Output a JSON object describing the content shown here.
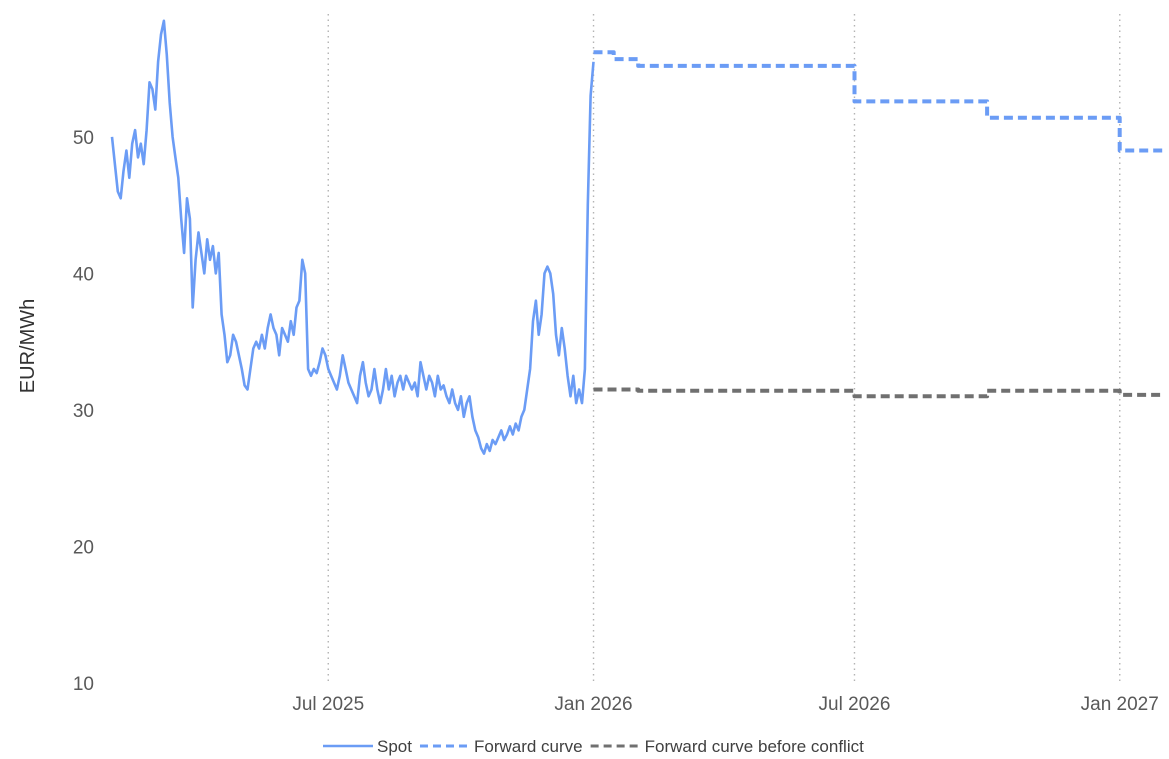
{
  "chart_data": {
    "type": "line",
    "title": "",
    "xlabel": "",
    "ylabel": "EUR/MWh",
    "ylim": [
      10,
      59
    ],
    "xlim": [
      "2025-02-01",
      "2027-01-31"
    ],
    "grid": {
      "vertical": "dotted",
      "horizontal": false
    },
    "legend_position": "bottom-center",
    "y_ticks": [
      {
        "value": 10,
        "label": "10"
      },
      {
        "value": 20,
        "label": "20"
      },
      {
        "value": 30,
        "label": "30"
      },
      {
        "value": 40,
        "label": "40"
      },
      {
        "value": 50,
        "label": "50"
      }
    ],
    "x_ticks": [
      {
        "value": "2025-07-01",
        "label": "Jul 2025"
      },
      {
        "value": "2026-01-01",
        "label": "Jan 2026"
      },
      {
        "value": "2026-07-01",
        "label": "Jul 2026"
      },
      {
        "value": "2027-01-01",
        "label": "Jan 2027"
      }
    ],
    "series": [
      {
        "name": "Spot",
        "color": "#6b9cf5",
        "style": "solid",
        "step": false,
        "points": [
          [
            "2025-02-01",
            50.0
          ],
          [
            "2025-02-03",
            48.0
          ],
          [
            "2025-02-05",
            46.0
          ],
          [
            "2025-02-07",
            45.5
          ],
          [
            "2025-02-09",
            47.5
          ],
          [
            "2025-02-11",
            49.0
          ],
          [
            "2025-02-13",
            47.0
          ],
          [
            "2025-02-15",
            49.5
          ],
          [
            "2025-02-17",
            50.5
          ],
          [
            "2025-02-19",
            48.5
          ],
          [
            "2025-02-21",
            49.5
          ],
          [
            "2025-02-23",
            48.0
          ],
          [
            "2025-02-25",
            50.5
          ],
          [
            "2025-02-27",
            54.0
          ],
          [
            "2025-03-01",
            53.5
          ],
          [
            "2025-03-03",
            52.0
          ],
          [
            "2025-03-05",
            55.5
          ],
          [
            "2025-03-07",
            57.5
          ],
          [
            "2025-03-09",
            58.5
          ],
          [
            "2025-03-11",
            56.0
          ],
          [
            "2025-03-13",
            52.5
          ],
          [
            "2025-03-15",
            50.0
          ],
          [
            "2025-03-17",
            48.5
          ],
          [
            "2025-03-19",
            47.0
          ],
          [
            "2025-03-21",
            44.0
          ],
          [
            "2025-03-23",
            41.5
          ],
          [
            "2025-03-25",
            45.5
          ],
          [
            "2025-03-27",
            44.0
          ],
          [
            "2025-03-29",
            37.5
          ],
          [
            "2025-03-31",
            41.0
          ],
          [
            "2025-04-02",
            43.0
          ],
          [
            "2025-04-04",
            41.5
          ],
          [
            "2025-04-06",
            40.0
          ],
          [
            "2025-04-08",
            42.5
          ],
          [
            "2025-04-10",
            41.0
          ],
          [
            "2025-04-12",
            42.0
          ],
          [
            "2025-04-14",
            40.0
          ],
          [
            "2025-04-16",
            41.5
          ],
          [
            "2025-04-18",
            37.0
          ],
          [
            "2025-04-20",
            35.5
          ],
          [
            "2025-04-22",
            33.5
          ],
          [
            "2025-04-24",
            34.0
          ],
          [
            "2025-04-26",
            35.5
          ],
          [
            "2025-04-28",
            35.0
          ],
          [
            "2025-04-30",
            34.0
          ],
          [
            "2025-05-02",
            33.0
          ],
          [
            "2025-05-04",
            31.8
          ],
          [
            "2025-05-06",
            31.5
          ],
          [
            "2025-05-08",
            33.0
          ],
          [
            "2025-05-10",
            34.5
          ],
          [
            "2025-05-12",
            35.0
          ],
          [
            "2025-05-14",
            34.5
          ],
          [
            "2025-05-16",
            35.5
          ],
          [
            "2025-05-18",
            34.5
          ],
          [
            "2025-05-20",
            36.0
          ],
          [
            "2025-05-22",
            37.0
          ],
          [
            "2025-05-24",
            36.0
          ],
          [
            "2025-05-26",
            35.5
          ],
          [
            "2025-05-28",
            34.0
          ],
          [
            "2025-05-30",
            36.0
          ],
          [
            "2025-06-01",
            35.5
          ],
          [
            "2025-06-03",
            35.0
          ],
          [
            "2025-06-05",
            36.5
          ],
          [
            "2025-06-07",
            35.5
          ],
          [
            "2025-06-09",
            37.5
          ],
          [
            "2025-06-11",
            38.0
          ],
          [
            "2025-06-13",
            41.0
          ],
          [
            "2025-06-15",
            40.0
          ],
          [
            "2025-06-17",
            33.0
          ],
          [
            "2025-06-19",
            32.5
          ],
          [
            "2025-06-21",
            33.0
          ],
          [
            "2025-06-23",
            32.7
          ],
          [
            "2025-06-25",
            33.5
          ],
          [
            "2025-06-27",
            34.5
          ],
          [
            "2025-06-29",
            34.0
          ],
          [
            "2025-07-01",
            33.0
          ],
          [
            "2025-07-03",
            32.5
          ],
          [
            "2025-07-05",
            32.0
          ],
          [
            "2025-07-07",
            31.5
          ],
          [
            "2025-07-09",
            32.5
          ],
          [
            "2025-07-11",
            34.0
          ],
          [
            "2025-07-13",
            33.0
          ],
          [
            "2025-07-15",
            32.0
          ],
          [
            "2025-07-17",
            31.5
          ],
          [
            "2025-07-19",
            31.0
          ],
          [
            "2025-07-21",
            30.5
          ],
          [
            "2025-07-23",
            32.5
          ],
          [
            "2025-07-25",
            33.5
          ],
          [
            "2025-07-27",
            32.0
          ],
          [
            "2025-07-29",
            31.0
          ],
          [
            "2025-07-31",
            31.5
          ],
          [
            "2025-08-02",
            33.0
          ],
          [
            "2025-08-04",
            31.5
          ],
          [
            "2025-08-06",
            30.5
          ],
          [
            "2025-08-08",
            31.5
          ],
          [
            "2025-08-10",
            33.0
          ],
          [
            "2025-08-12",
            31.5
          ],
          [
            "2025-08-14",
            32.5
          ],
          [
            "2025-08-16",
            31.0
          ],
          [
            "2025-08-18",
            32.0
          ],
          [
            "2025-08-20",
            32.5
          ],
          [
            "2025-08-22",
            31.5
          ],
          [
            "2025-08-24",
            32.5
          ],
          [
            "2025-08-26",
            32.0
          ],
          [
            "2025-08-28",
            31.5
          ],
          [
            "2025-08-30",
            32.0
          ],
          [
            "2025-09-01",
            31.0
          ],
          [
            "2025-09-03",
            33.5
          ],
          [
            "2025-09-05",
            32.5
          ],
          [
            "2025-09-07",
            31.5
          ],
          [
            "2025-09-09",
            32.5
          ],
          [
            "2025-09-11",
            32.0
          ],
          [
            "2025-09-13",
            31.0
          ],
          [
            "2025-09-15",
            32.5
          ],
          [
            "2025-09-17",
            31.5
          ],
          [
            "2025-09-19",
            31.8
          ],
          [
            "2025-09-21",
            31.0
          ],
          [
            "2025-09-23",
            30.5
          ],
          [
            "2025-09-25",
            31.5
          ],
          [
            "2025-09-27",
            30.5
          ],
          [
            "2025-09-29",
            30.0
          ],
          [
            "2025-10-01",
            31.0
          ],
          [
            "2025-10-03",
            29.5
          ],
          [
            "2025-10-05",
            30.5
          ],
          [
            "2025-10-07",
            31.0
          ],
          [
            "2025-10-09",
            29.5
          ],
          [
            "2025-10-11",
            28.5
          ],
          [
            "2025-10-13",
            28.0
          ],
          [
            "2025-10-15",
            27.2
          ],
          [
            "2025-10-17",
            26.8
          ],
          [
            "2025-10-19",
            27.5
          ],
          [
            "2025-10-21",
            27.0
          ],
          [
            "2025-10-23",
            27.8
          ],
          [
            "2025-10-25",
            27.5
          ],
          [
            "2025-10-27",
            28.0
          ],
          [
            "2025-10-29",
            28.5
          ],
          [
            "2025-10-31",
            27.8
          ],
          [
            "2025-11-02",
            28.2
          ],
          [
            "2025-11-04",
            28.8
          ],
          [
            "2025-11-06",
            28.2
          ],
          [
            "2025-11-08",
            29.0
          ],
          [
            "2025-11-10",
            28.5
          ],
          [
            "2025-11-12",
            29.5
          ],
          [
            "2025-11-14",
            30.0
          ],
          [
            "2025-11-16",
            31.5
          ],
          [
            "2025-11-18",
            33.0
          ],
          [
            "2025-11-20",
            36.5
          ],
          [
            "2025-11-22",
            38.0
          ],
          [
            "2025-11-24",
            35.5
          ],
          [
            "2025-11-26",
            37.0
          ],
          [
            "2025-11-28",
            40.0
          ],
          [
            "2025-11-30",
            40.5
          ],
          [
            "2025-12-02",
            40.0
          ],
          [
            "2025-12-04",
            38.5
          ],
          [
            "2025-12-06",
            35.5
          ],
          [
            "2025-12-08",
            34.0
          ],
          [
            "2025-12-10",
            36.0
          ],
          [
            "2025-12-12",
            34.5
          ],
          [
            "2025-12-14",
            32.5
          ],
          [
            "2025-12-16",
            31.0
          ],
          [
            "2025-12-18",
            32.5
          ],
          [
            "2025-12-20",
            30.5
          ],
          [
            "2025-12-22",
            31.5
          ],
          [
            "2025-12-24",
            30.5
          ],
          [
            "2025-12-26",
            33.0
          ],
          [
            "2025-12-28",
            45.0
          ],
          [
            "2025-12-30",
            53.0
          ],
          [
            "2026-01-01",
            55.5
          ]
        ]
      },
      {
        "name": "Forward curve",
        "color": "#6b9cf5",
        "style": "dashed",
        "step": true,
        "points": [
          [
            "2026-01-01",
            56.2
          ],
          [
            "2026-01-15",
            55.7
          ],
          [
            "2026-02-01",
            55.2
          ],
          [
            "2026-07-01",
            52.6
          ],
          [
            "2026-10-01",
            51.4
          ],
          [
            "2027-01-01",
            49.0
          ],
          [
            "2027-01-31",
            49.0
          ]
        ]
      },
      {
        "name": "Forward curve before conflict",
        "color": "#707070",
        "style": "dashed",
        "step": true,
        "points": [
          [
            "2026-01-01",
            31.5
          ],
          [
            "2026-02-01",
            31.4
          ],
          [
            "2026-07-01",
            31.0
          ],
          [
            "2026-10-01",
            31.4
          ],
          [
            "2027-01-01",
            31.1
          ],
          [
            "2027-01-31",
            31.1
          ]
        ]
      }
    ]
  }
}
